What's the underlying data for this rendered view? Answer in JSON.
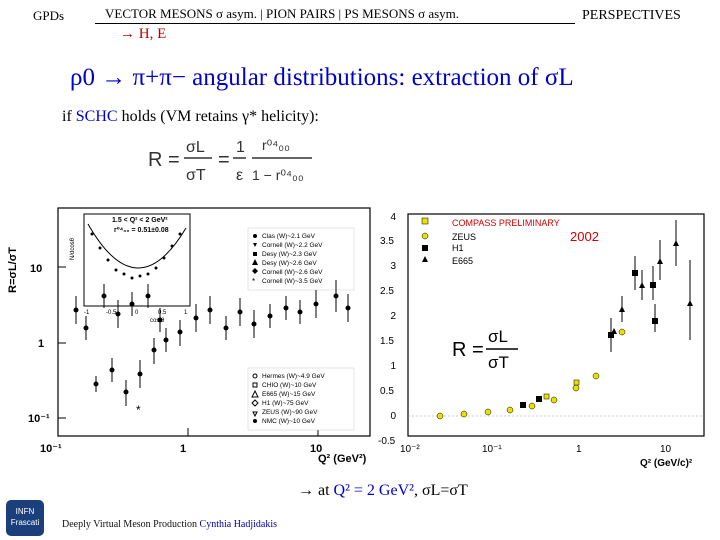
{
  "header": {
    "left": "GPDs",
    "center": "VECTOR MESONS  σ asym. | PION PAIRS | PS MESONS  σ asym.",
    "sub": "→ H, E",
    "right": "PERSPECTIVES"
  },
  "title": "ρ0 → π+π− angular distributions: extraction of σL",
  "condition": {
    "pre": "if ",
    "hl": "SCHC",
    "post": " holds (VM retains γ* helicity):"
  },
  "formula": {
    "lhs": "R =",
    "frac1_num": "σL",
    "frac1_den": "σT",
    "eq": "=",
    "frac2_num": "1",
    "frac2_den": "ε",
    "frac3_num": "r⁰⁴₀₀",
    "frac3_den": "1 − r⁰⁴₀₀"
  },
  "left_plot": {
    "ylabel": "R=σL/σT",
    "xlabel": "Q² (GeV²)",
    "yticks": [
      "10⁻¹",
      "1",
      "10"
    ],
    "xticks": [
      "10⁻¹",
      "1",
      "10"
    ],
    "legend_top": [
      "Clas (W)~2.1 GeV",
      "Cornell (W)~2.2 GeV",
      "Desy (W)~2.3 GeV",
      "Desy (W)~2.6 GeV",
      "Cornell (W)~2.6 GeV",
      "Cornell (W)~3.5 GeV"
    ],
    "legend_bottom": [
      "Hermes (W)~4.9 GeV",
      "CHIO (W)~10 GeV",
      "E665 (W)~15 GeV",
      "H1 (W)~75 GeV",
      "ZEUS (W)~90 GeV",
      "NMC (W)~10 GeV"
    ],
    "inset_label": "1.5 < Q² < 2 GeV²",
    "inset_val": "r⁰⁴₀₀ = 0.51±0.08",
    "inset_ylabel": "N/dcosθ",
    "inset_xlabel": "cos θ",
    "inset_xticks": [
      "-1",
      "-0.5",
      "0",
      "0.5",
      "1"
    ]
  },
  "right_plot": {
    "legend": [
      "COMPASS PRELIMINARY",
      "ZEUS",
      "H1",
      "E665"
    ],
    "year": "2002",
    "yticks": [
      "-0.5",
      "0",
      "0.5",
      "1",
      "1.5",
      "2",
      "2.5",
      "3",
      "3.5",
      "4"
    ],
    "xticks": [
      "10⁻²",
      "10⁻¹",
      "1",
      "10"
    ],
    "xlabel": "Q² (GeV/c)²",
    "formula_lhs": "R =",
    "formula_num": "σL",
    "formula_den": "σT"
  },
  "bottom_note": {
    "arrow": "→",
    "pre": " at ",
    "hl": "Q² = 2 GeV²",
    "post": ", σL=σT"
  },
  "footer": {
    "text": "Deeply Virtual Meson Production ",
    "author": "Cynthia Hadjidakis"
  },
  "logo": {
    "line1": "INFN",
    "line2": "Frascati"
  }
}
